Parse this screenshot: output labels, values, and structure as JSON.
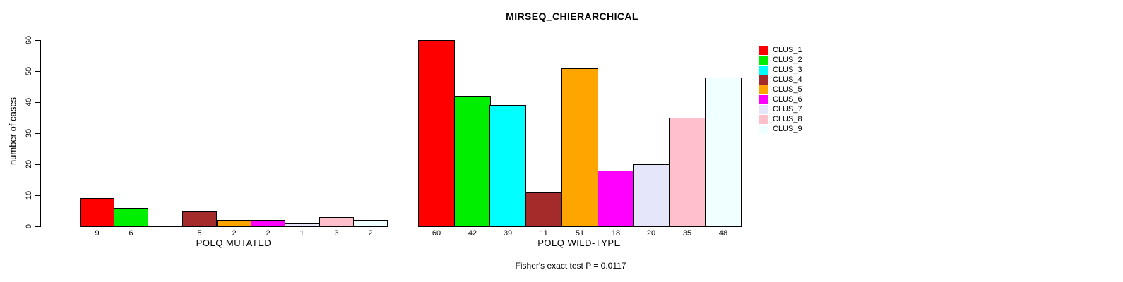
{
  "chart_data": {
    "type": "bar",
    "title": "MIRSEQ_CHIERARCHICAL",
    "ylabel": "number of cases",
    "ylim": [
      0,
      60
    ],
    "yticks": [
      0,
      10,
      20,
      30,
      40,
      50,
      60
    ],
    "grid": false,
    "legend_position": "right",
    "clusters": [
      {
        "name": "CLUS_1",
        "color": "#FF0000"
      },
      {
        "name": "CLUS_2",
        "color": "#00EE00"
      },
      {
        "name": "CLUS_3",
        "color": "#00FFFF"
      },
      {
        "name": "CLUS_4",
        "color": "#A52A2A"
      },
      {
        "name": "CLUS_5",
        "color": "#FFA500"
      },
      {
        "name": "CLUS_6",
        "color": "#FF00FF"
      },
      {
        "name": "CLUS_7",
        "color": "#E6E6FA"
      },
      {
        "name": "CLUS_8",
        "color": "#FFC0CB"
      },
      {
        "name": "CLUS_9",
        "color": "#F0FFFF"
      }
    ],
    "groups": [
      {
        "label": "POLQ MUTATED",
        "values": [
          9,
          6,
          0,
          5,
          2,
          2,
          1,
          3,
          2
        ]
      },
      {
        "label": "POLQ WILD-TYPE",
        "values": [
          60,
          42,
          39,
          11,
          51,
          18,
          20,
          35,
          48
        ]
      }
    ],
    "annotation": "Fisher's exact test P = 0.0117"
  }
}
